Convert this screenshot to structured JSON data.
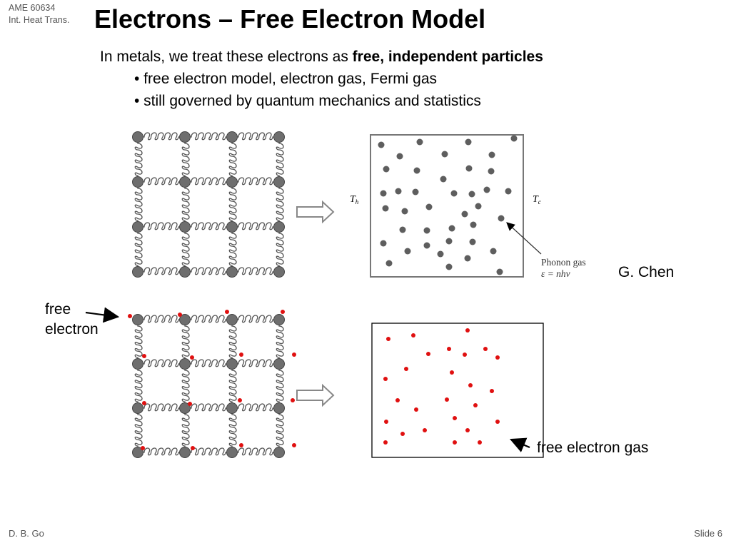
{
  "header": {
    "course_code": "AME 60634",
    "course_name": "Int. Heat Trans.",
    "title": "Electrons – Free Electron Model"
  },
  "body": {
    "intro_prefix": "In metals, we treat these electrons as ",
    "intro_bold": "free, independent particles",
    "bullets": [
      "• free electron model, electron gas, Fermi gas",
      "• still governed by quantum mechanics and statistics"
    ]
  },
  "figure": {
    "hot_label": "T",
    "hot_sub": "h",
    "cold_label": "T",
    "cold_sub": "c",
    "phonon_label": "Phonon gas",
    "phonon_formula": "ε = nhν",
    "credit": "G. Chen",
    "free_electron_label_line1": "free",
    "free_electron_label_line2": "electron",
    "free_electron_gas_label": "free electron gas"
  },
  "colors": {
    "atom": "#6e6e6e",
    "electron": "#e01010",
    "phonon": "#5e5e5e"
  },
  "footer": {
    "author": "D. B. Go",
    "slide": "Slide 6"
  }
}
